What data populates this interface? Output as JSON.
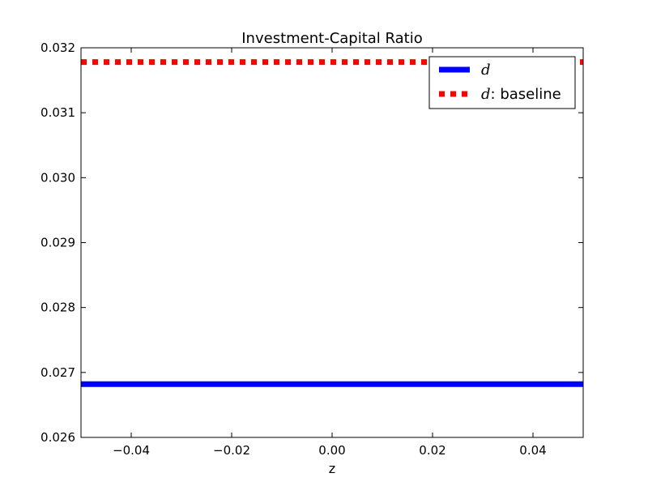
{
  "chart_data": {
    "type": "line",
    "title": "Investment-Capital Ratio",
    "xlabel": "z",
    "ylabel": "",
    "xlim": [
      -0.05,
      0.05
    ],
    "ylim": [
      0.026,
      0.032
    ],
    "xticks": [
      -0.04,
      -0.02,
      0.0,
      0.02,
      0.04
    ],
    "xtick_labels": [
      "−0.04",
      "−0.02",
      "0.00",
      "0.02",
      "0.04"
    ],
    "yticks": [
      0.026,
      0.027,
      0.028,
      0.029,
      0.03,
      0.031,
      0.032
    ],
    "ytick_labels": [
      "0.026",
      "0.027",
      "0.028",
      "0.029",
      "0.030",
      "0.031",
      "0.032"
    ],
    "grid": false,
    "legend_position": "top-right",
    "series": [
      {
        "name": "d",
        "legend_symbol": "d",
        "legend_suffix": "",
        "x": [
          -0.05,
          0.05
        ],
        "y": [
          0.02682,
          0.02682
        ],
        "color": "#0000ff",
        "style": "solid"
      },
      {
        "name": "d: baseline",
        "legend_symbol": "d",
        "legend_suffix": ": baseline",
        "x": [
          -0.05,
          0.05
        ],
        "y": [
          0.03178,
          0.03178
        ],
        "color": "#ff0000",
        "style": "dotted"
      }
    ]
  }
}
